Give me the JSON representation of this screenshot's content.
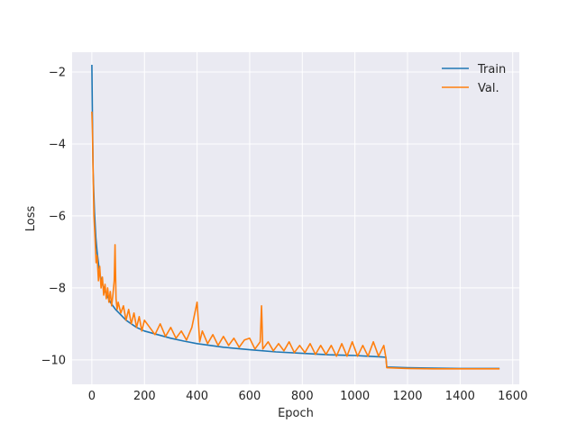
{
  "chart_data": {
    "type": "line",
    "title": "",
    "xlabel": "Epoch",
    "ylabel": "Loss",
    "xlim": [
      -75,
      1625
    ],
    "ylim": [
      -10.68,
      -1.45
    ],
    "xticks": [
      0,
      200,
      400,
      600,
      800,
      1000,
      1200,
      1400,
      1600
    ],
    "yticks": [
      -2,
      -4,
      -6,
      -8,
      -10
    ],
    "grid": true,
    "legend_position": "top-right",
    "background": "#eaeaf2",
    "series": [
      {
        "name": "Train",
        "color": "#1f77b4",
        "x": [
          0,
          2,
          5,
          10,
          15,
          20,
          30,
          40,
          50,
          70,
          90,
          110,
          130,
          150,
          170,
          200,
          250,
          300,
          350,
          400,
          450,
          500,
          600,
          700,
          800,
          900,
          1000,
          1050,
          1100,
          1118,
          1121,
          1200,
          1300,
          1400,
          1500,
          1550
        ],
        "y": [
          -1.8,
          -3.2,
          -4.8,
          -5.9,
          -6.6,
          -7.0,
          -7.6,
          -7.9,
          -8.1,
          -8.4,
          -8.6,
          -8.75,
          -8.9,
          -9.0,
          -9.1,
          -9.2,
          -9.3,
          -9.4,
          -9.48,
          -9.55,
          -9.6,
          -9.65,
          -9.72,
          -9.78,
          -9.82,
          -9.86,
          -9.88,
          -9.9,
          -9.92,
          -9.93,
          -10.2,
          -10.22,
          -10.23,
          -10.24,
          -10.24,
          -10.24
        ]
      },
      {
        "name": "Val.",
        "color": "#ff7f0e",
        "x": [
          0,
          2,
          5,
          8,
          12,
          16,
          20,
          25,
          30,
          35,
          40,
          45,
          50,
          55,
          60,
          65,
          70,
          75,
          80,
          85,
          88,
          92,
          96,
          100,
          110,
          120,
          130,
          140,
          150,
          160,
          170,
          180,
          190,
          200,
          220,
          240,
          260,
          280,
          300,
          320,
          340,
          360,
          380,
          400,
          410,
          420,
          440,
          460,
          480,
          500,
          520,
          540,
          560,
          580,
          600,
          620,
          640,
          645,
          650,
          670,
          690,
          710,
          730,
          750,
          770,
          790,
          810,
          830,
          850,
          870,
          890,
          910,
          930,
          950,
          970,
          990,
          1010,
          1030,
          1050,
          1070,
          1090,
          1110,
          1118,
          1121,
          1200,
          1300,
          1400,
          1500,
          1550
        ],
        "y": [
          -3.1,
          -3.6,
          -4.8,
          -6.0,
          -6.6,
          -7.3,
          -7.1,
          -7.8,
          -7.4,
          -8.0,
          -7.7,
          -8.2,
          -7.9,
          -8.3,
          -8.0,
          -8.4,
          -8.1,
          -8.5,
          -8.2,
          -7.8,
          -6.8,
          -8.3,
          -8.6,
          -8.4,
          -8.7,
          -8.5,
          -8.9,
          -8.6,
          -9.0,
          -8.7,
          -9.1,
          -8.8,
          -9.2,
          -8.9,
          -9.1,
          -9.3,
          -9.0,
          -9.35,
          -9.1,
          -9.4,
          -9.2,
          -9.45,
          -9.1,
          -8.4,
          -9.5,
          -9.2,
          -9.55,
          -9.3,
          -9.6,
          -9.35,
          -9.6,
          -9.4,
          -9.65,
          -9.45,
          -9.4,
          -9.7,
          -9.5,
          -8.5,
          -9.7,
          -9.5,
          -9.75,
          -9.55,
          -9.75,
          -9.5,
          -9.8,
          -9.6,
          -9.8,
          -9.55,
          -9.85,
          -9.6,
          -9.85,
          -9.6,
          -9.9,
          -9.55,
          -9.9,
          -9.5,
          -9.9,
          -9.6,
          -9.9,
          -9.5,
          -9.9,
          -9.6,
          -9.95,
          -10.22,
          -10.24,
          -10.25,
          -10.25,
          -10.25,
          -10.25
        ]
      }
    ]
  }
}
